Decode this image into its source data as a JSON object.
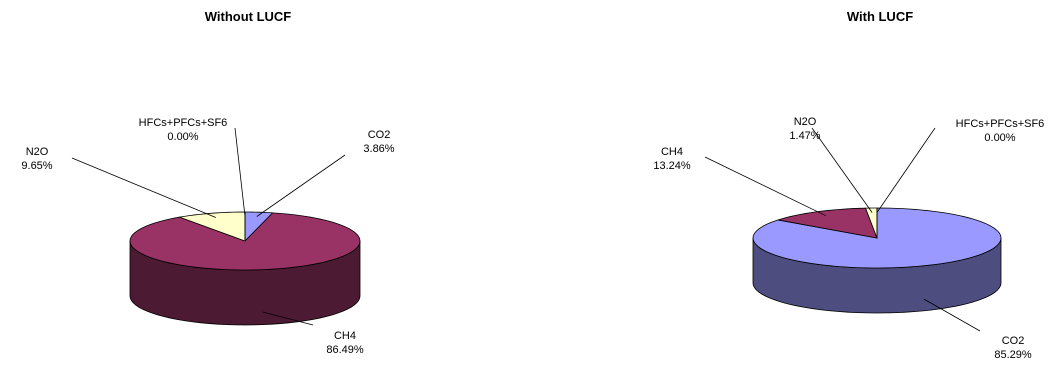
{
  "chart_data": [
    {
      "type": "pie",
      "title": "Without LUCF",
      "slices": [
        {
          "label": "CO2",
          "value": 3.86,
          "display": "3.86%",
          "color": "#9999ff",
          "side": "#4d4d80"
        },
        {
          "label": "CH4",
          "value": 86.49,
          "display": "86.49%",
          "color": "#993366",
          "side": "#4d1a33"
        },
        {
          "label": "N2O",
          "value": 9.65,
          "display": "9.65%",
          "color": "#ffffcc",
          "side": "#808066"
        },
        {
          "label": "HFCs+PFCs+SF6",
          "value": 0.0,
          "display": "0.00%",
          "color": "#ccffff",
          "side": "#668080"
        }
      ]
    },
    {
      "type": "pie",
      "title": "With LUCF",
      "slices": [
        {
          "label": "CO2",
          "value": 85.29,
          "display": "85.29%",
          "color": "#9999ff",
          "side": "#4d4d80"
        },
        {
          "label": "CH4",
          "value": 13.24,
          "display": "13.24%",
          "color": "#993366",
          "side": "#4d1a33"
        },
        {
          "label": "N2O",
          "value": 1.47,
          "display": "1.47%",
          "color": "#ffffcc",
          "side": "#808066"
        },
        {
          "label": "HFCs+PFCs+SF6",
          "value": 0.0,
          "display": "0.00%",
          "color": "#ccffff",
          "side": "#668080"
        }
      ]
    }
  ]
}
